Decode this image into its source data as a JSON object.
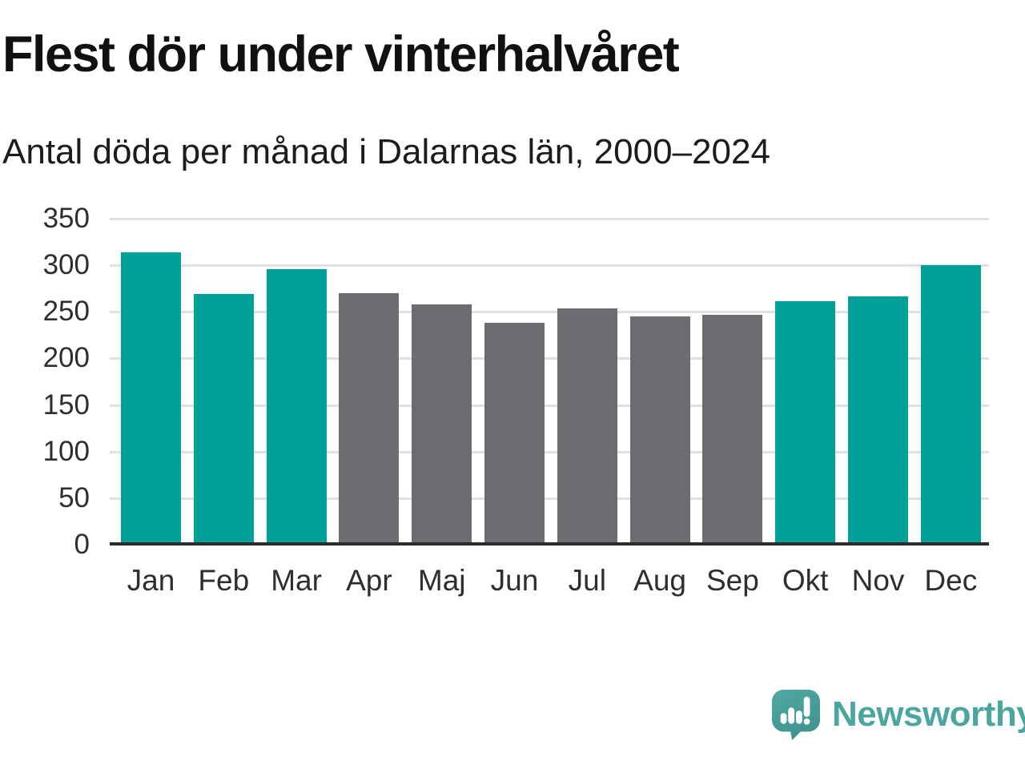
{
  "header": {
    "title": "Flest dör under vinterhalvåret",
    "subtitle": "Antal döda per månad i Dalarnas län, 2000–2024"
  },
  "chart_data": {
    "type": "bar",
    "title": "Flest dör under vinterhalvåret",
    "subtitle": "Antal döda per månad i Dalarnas län, 2000–2024",
    "categories": [
      "Jan",
      "Feb",
      "Mar",
      "Apr",
      "Maj",
      "Jun",
      "Jul",
      "Aug",
      "Sep",
      "Okt",
      "Nov",
      "Dec"
    ],
    "values": [
      314,
      269,
      296,
      270,
      258,
      238,
      254,
      245,
      247,
      261,
      267,
      300
    ],
    "bar_groups": [
      "winter",
      "winter",
      "winter",
      "summer",
      "summer",
      "summer",
      "summer",
      "summer",
      "summer",
      "winter",
      "winter",
      "winter"
    ],
    "group_colors": {
      "winter": "#009f98",
      "summer": "#6c6c71"
    },
    "xlabel": "",
    "ylabel": "",
    "ylim": [
      0,
      350
    ],
    "yticks": [
      0,
      50,
      100,
      150,
      200,
      250,
      300,
      350
    ],
    "grid": "horizontal",
    "legend": "none",
    "gridline_color": "#e0e0e0",
    "axis_line_color": "#2b2b2b"
  },
  "footer": {
    "brand": "Newsworthy",
    "brand_color": "#4ba6a0",
    "logo_icon": "newsworthy-speech-bubble-bars-icon"
  }
}
